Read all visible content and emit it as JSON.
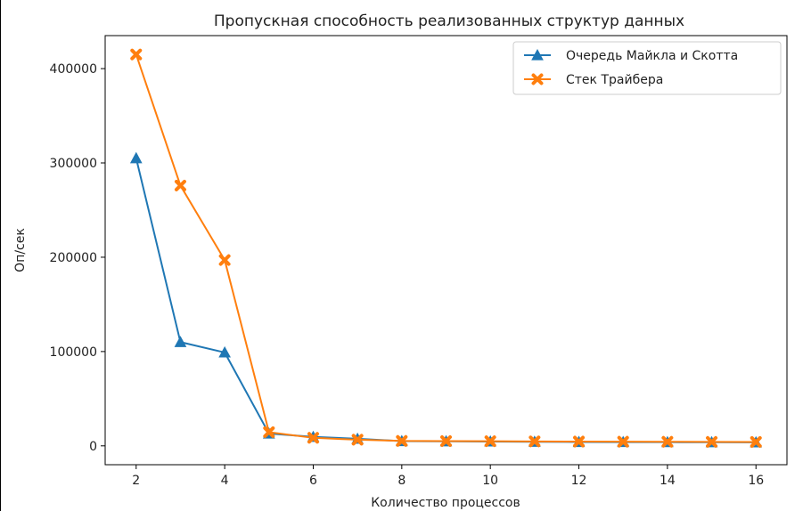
{
  "chart_data": {
    "type": "line",
    "title": "Пропускная способность реализованных структур данных",
    "xlabel": "Количество процессов",
    "ylabel": "Оп/сек",
    "x": [
      2,
      3,
      4,
      5,
      6,
      7,
      8,
      9,
      10,
      11,
      12,
      13,
      14,
      15,
      16
    ],
    "xlim": [
      1.3,
      16.7
    ],
    "ylim": [
      -20000,
      435000
    ],
    "xticks": [
      "2",
      "4",
      "6",
      "8",
      "10",
      "12",
      "14",
      "16"
    ],
    "yticks": [
      "0",
      "100000",
      "200000",
      "300000",
      "400000"
    ],
    "grid": false,
    "legend_position": "upper right",
    "series": [
      {
        "name": "Очередь Майкла и Скотта",
        "marker": "triangle",
        "color": "#1f77b4",
        "values": [
          305000,
          110000,
          99000,
          13000,
          9500,
          7500,
          5000,
          4800,
          4600,
          4300,
          4100,
          4000,
          3900,
          3800,
          3700
        ]
      },
      {
        "name": "Стек Трайбера",
        "marker": "x",
        "color": "#ff7f0e",
        "values": [
          415000,
          276000,
          197000,
          14500,
          8500,
          6500,
          5200,
          5000,
          4900,
          4700,
          4500,
          4400,
          4300,
          4200,
          4100
        ]
      }
    ]
  }
}
